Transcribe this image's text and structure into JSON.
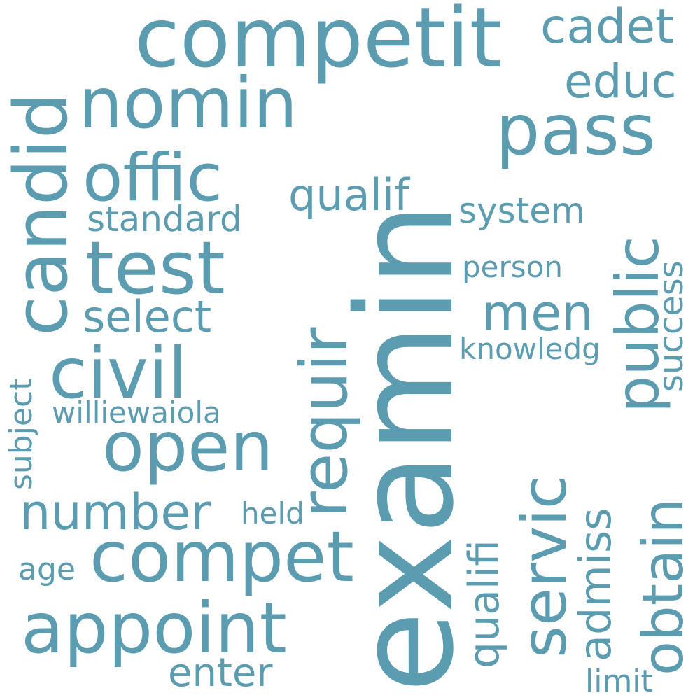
{
  "cloud": {
    "color": "#5b9cb1",
    "words": [
      "examin",
      "competit",
      "candid",
      "nomin",
      "pass",
      "cadet",
      "educ",
      "offic",
      "public",
      "test",
      "requir",
      "standard",
      "qualif",
      "system",
      "servic",
      "civil",
      "men",
      "select",
      "person",
      "success",
      "knowledg",
      "obtain",
      "open",
      "williewaiola",
      "subject",
      "number",
      "compet",
      "qualifi",
      "held",
      "admiss",
      "appoint",
      "age",
      "enter",
      "limit"
    ]
  }
}
